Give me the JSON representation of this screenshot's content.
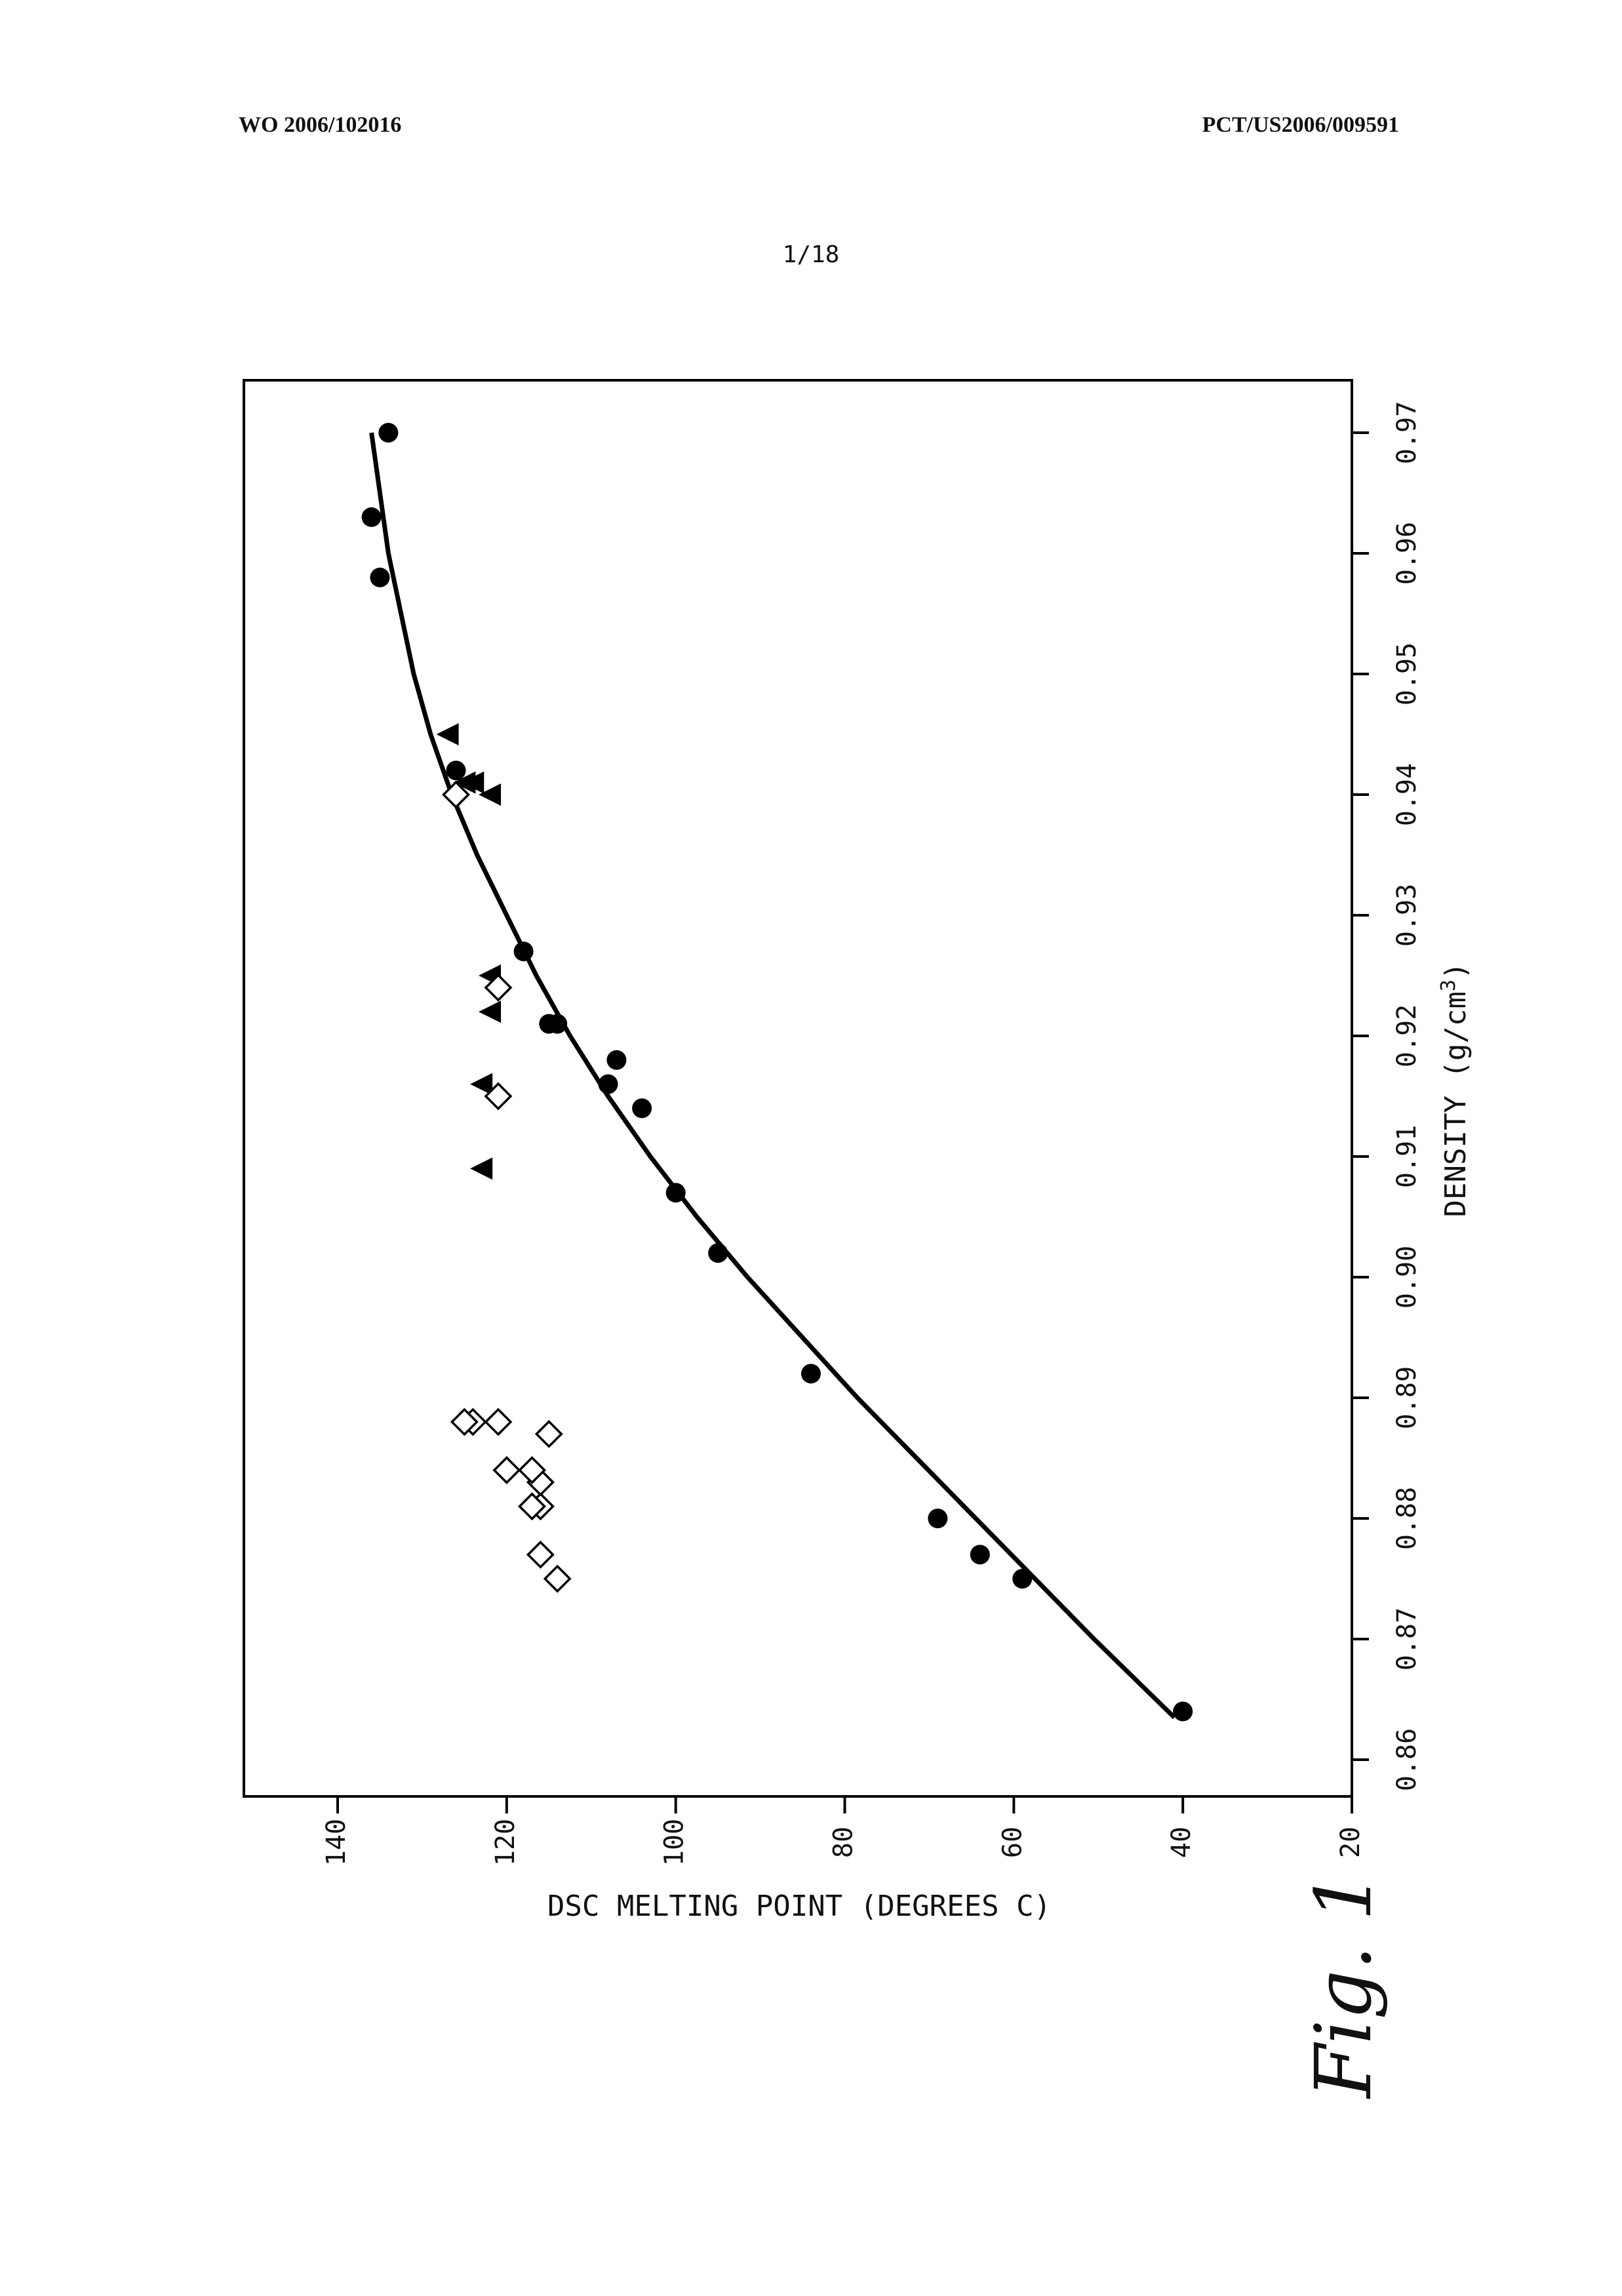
{
  "header": {
    "left": "WO 2006/102016",
    "right": "PCT/US2006/009591"
  },
  "sheet_number": "1/18",
  "figure_label": "Fig. 1",
  "chart_data": {
    "type": "scatter",
    "rotated": "90deg-counterclockwise",
    "title": "",
    "xlabel": "DENSITY (g/cm3)",
    "ylabel": "DSC MELTING POINT (DEGREES C)",
    "xlim": [
      0.86,
      0.97
    ],
    "ylim": [
      20,
      150
    ],
    "x_ticks": [
      "0.86",
      "0.87",
      "0.88",
      "0.89",
      "0.90",
      "0.91",
      "0.92",
      "0.93",
      "0.94",
      "0.95",
      "0.96",
      "0.97"
    ],
    "y_ticks": [
      "20",
      "40",
      "60",
      "80",
      "100",
      "120",
      "140"
    ],
    "grid": false,
    "legend": "none",
    "series": [
      {
        "marker": "filled-circle",
        "color": "#000000",
        "points": [
          [
            0.864,
            40
          ],
          [
            0.875,
            59
          ],
          [
            0.877,
            64
          ],
          [
            0.88,
            69
          ],
          [
            0.892,
            84
          ],
          [
            0.902,
            95
          ],
          [
            0.907,
            100
          ],
          [
            0.914,
            104
          ],
          [
            0.916,
            108
          ],
          [
            0.918,
            107
          ],
          [
            0.921,
            114
          ],
          [
            0.921,
            115
          ],
          [
            0.927,
            118
          ],
          [
            0.942,
            126
          ],
          [
            0.958,
            135
          ],
          [
            0.963,
            136
          ],
          [
            0.97,
            134
          ]
        ]
      },
      {
        "marker": "filled-triangle",
        "color": "#000000",
        "points": [
          [
            0.909,
            123
          ],
          [
            0.916,
            123
          ],
          [
            0.922,
            122
          ],
          [
            0.925,
            122
          ],
          [
            0.94,
            122
          ],
          [
            0.941,
            124
          ],
          [
            0.941,
            125
          ],
          [
            0.945,
            127
          ]
        ]
      },
      {
        "marker": "open-diamond",
        "color": "#000000",
        "points": [
          [
            0.875,
            114
          ],
          [
            0.877,
            116
          ],
          [
            0.881,
            116
          ],
          [
            0.881,
            117
          ],
          [
            0.883,
            116
          ],
          [
            0.884,
            117
          ],
          [
            0.884,
            120
          ],
          [
            0.887,
            115
          ],
          [
            0.888,
            121
          ],
          [
            0.888,
            124
          ],
          [
            0.888,
            125
          ],
          [
            0.915,
            121
          ],
          [
            0.924,
            121
          ],
          [
            0.94,
            126
          ]
        ]
      },
      {
        "type": "line",
        "style": "solid-curve-fit",
        "color": "#000000",
        "points": [
          [
            0.8635,
            41
          ],
          [
            0.87,
            50.5
          ],
          [
            0.875,
            57.5
          ],
          [
            0.88,
            64.5
          ],
          [
            0.885,
            71.5
          ],
          [
            0.89,
            78.5
          ],
          [
            0.895,
            85
          ],
          [
            0.9,
            91.5
          ],
          [
            0.905,
            97.5
          ],
          [
            0.91,
            103
          ],
          [
            0.915,
            108
          ],
          [
            0.92,
            112.5
          ],
          [
            0.925,
            116.5
          ],
          [
            0.93,
            120
          ],
          [
            0.935,
            123.5
          ],
          [
            0.94,
            126.5
          ],
          [
            0.945,
            129
          ],
          [
            0.95,
            131
          ],
          [
            0.955,
            132.5
          ],
          [
            0.96,
            134
          ],
          [
            0.965,
            135
          ],
          [
            0.97,
            136
          ]
        ]
      }
    ]
  }
}
